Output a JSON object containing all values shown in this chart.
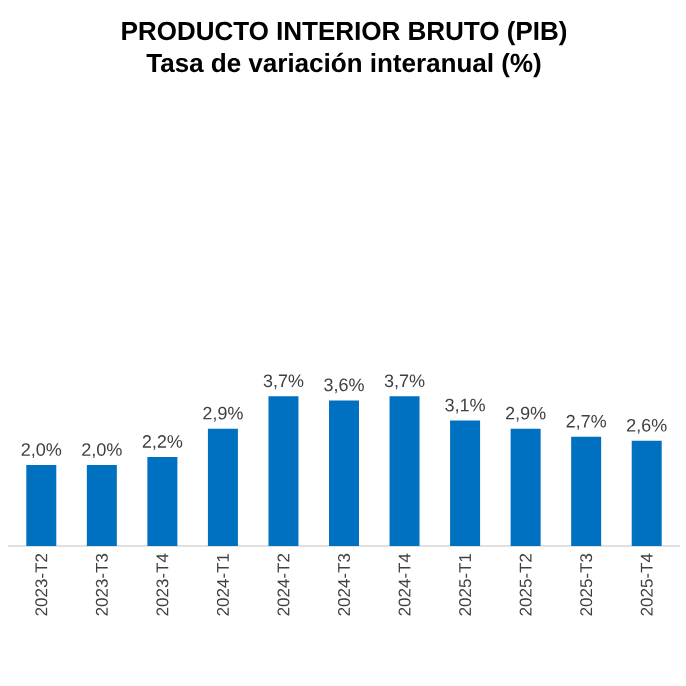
{
  "chart_data": {
    "type": "bar",
    "title": "PRODUCTO INTERIOR BRUTO (PIB)",
    "subtitle": "Tasa de variación interanual (%)",
    "categories": [
      "2023-T2",
      "2023-T3",
      "2023-T4",
      "2024-T1",
      "2024-T2",
      "2024-T3",
      "2024-T4",
      "2025-T1",
      "2025-T2",
      "2025-T3",
      "2025-T4"
    ],
    "values": [
      2.0,
      2.0,
      2.2,
      2.9,
      3.7,
      3.6,
      3.7,
      3.1,
      2.9,
      2.7,
      2.6
    ],
    "value_labels": [
      "2,0%",
      "2,0%",
      "2,2%",
      "2,9%",
      "3,7%",
      "3,6%",
      "3,7%",
      "3,1%",
      "2,9%",
      "2,7%",
      "2,6%"
    ],
    "color": "#0070c0",
    "tick_labels": "x"
  }
}
